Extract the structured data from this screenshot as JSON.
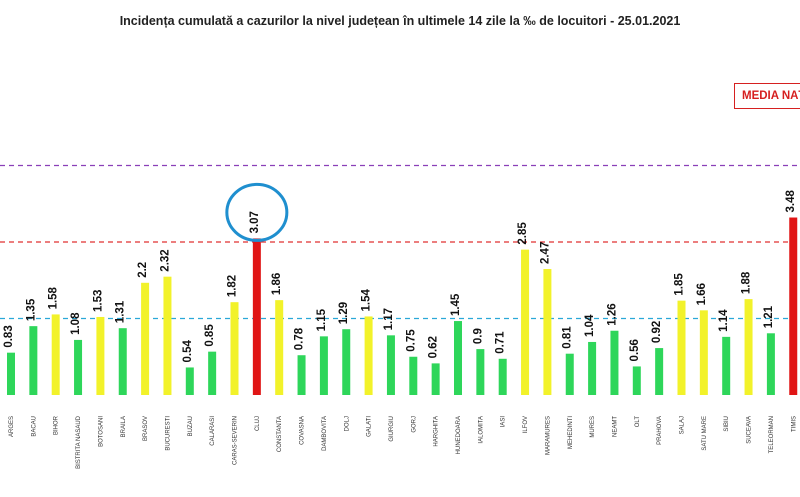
{
  "chart_data": {
    "type": "bar",
    "title": "Incidența cumulată a cazurilor la nivel județean în ultimele 14 zile la ‰ de locuitori - 25.01.2021",
    "legend_label": "MEDIA NAȚ",
    "ylim": [
      0,
      5.2
    ],
    "reference_lines": [
      {
        "value": 4.5,
        "style": "dashed",
        "color": "#8a3fb8"
      },
      {
        "value": 3.0,
        "style": "dashed",
        "color": "#e03030"
      },
      {
        "value": 1.5,
        "style": "dashed",
        "color": "#2aa8d8"
      }
    ],
    "highlight": {
      "category": "CLUJ",
      "shape": "circle",
      "color": "#1f8fcf"
    },
    "colors": {
      "green": "#2ed65a",
      "yellow": "#f2f22a",
      "red": "#e01515"
    },
    "categories": [
      "ARGES",
      "BACAU",
      "BIHOR",
      "BISTRITA NASAUD",
      "BOTOSANI",
      "BRAILA",
      "BRASOV",
      "BUCURESTI",
      "BUZAU",
      "CALARASI",
      "CARAS-SEVERIN",
      "CLUJ",
      "CONSTANTA",
      "COVASNA",
      "DAMBOVITA",
      "DOLJ",
      "GALATI",
      "GIURGIU",
      "GORJ",
      "HARGHITA",
      "HUNEDOARA",
      "IALOMITA",
      "IASI",
      "ILFOV",
      "MARAMURES",
      "MEHEDINTI",
      "MURES",
      "NEAMT",
      "OLT",
      "PRAHOVA",
      "SALAJ",
      "SATU MARE",
      "SIBIU",
      "SUCEAVA",
      "TELEORMAN",
      "TIMIS"
    ],
    "values": [
      0.83,
      1.35,
      1.58,
      1.08,
      1.53,
      1.31,
      2.2,
      2.32,
      0.54,
      0.85,
      1.82,
      3.07,
      1.86,
      0.78,
      1.15,
      1.29,
      1.54,
      1.17,
      0.75,
      0.62,
      1.45,
      0.9,
      0.71,
      2.85,
      2.47,
      0.81,
      1.04,
      1.26,
      0.56,
      0.92,
      1.85,
      1.66,
      1.14,
      1.88,
      1.21,
      3.48
    ],
    "value_labels": [
      "0.83",
      "1.35",
      "1.58",
      "1.08",
      "1.53",
      "1.31",
      "2.2",
      "2.32",
      "0.54",
      "0.85",
      "1.82",
      "3.07",
      "1.86",
      "0.78",
      "1.15",
      "1.29",
      "1.54",
      "1.17",
      "0.75",
      "0.62",
      "1.45",
      "0.9",
      "0.71",
      "2.85",
      "2.47",
      "0.81",
      "1.04",
      "1.26",
      "0.56",
      "0.92",
      "1.85",
      "1.66",
      "1.14",
      "1.88",
      "1.21",
      "3.48"
    ],
    "bar_colors": [
      "green",
      "green",
      "yellow",
      "green",
      "yellow",
      "green",
      "yellow",
      "yellow",
      "green",
      "green",
      "yellow",
      "red",
      "yellow",
      "green",
      "green",
      "green",
      "yellow",
      "green",
      "green",
      "green",
      "green",
      "green",
      "green",
      "yellow",
      "yellow",
      "green",
      "green",
      "green",
      "green",
      "green",
      "yellow",
      "yellow",
      "green",
      "yellow",
      "green",
      "red"
    ]
  }
}
